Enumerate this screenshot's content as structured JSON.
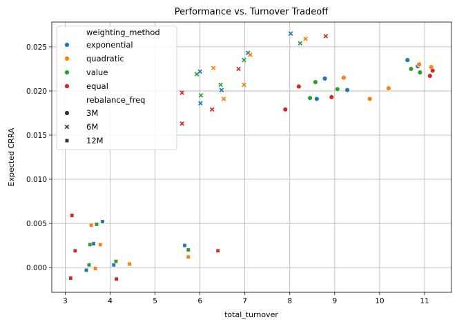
{
  "chart_data": {
    "type": "scatter",
    "title": "Performance vs. Turnover Tradeoff",
    "xlabel": "total_turnover",
    "ylabel": "Expected CRRA",
    "xlim": [
      2.7,
      11.6
    ],
    "ylim": [
      -0.0028,
      0.0278
    ],
    "xticks": [
      3,
      4,
      5,
      6,
      7,
      8,
      9,
      10,
      11
    ],
    "xtick_labels": [
      "3",
      "4",
      "5",
      "6",
      "7",
      "8",
      "9",
      "10",
      "11"
    ],
    "yticks": [
      0,
      0.005,
      0.01,
      0.015,
      0.02,
      0.025
    ],
    "ytick_labels": [
      "0.000",
      "0.005",
      "0.010",
      "0.015",
      "0.020",
      "0.025"
    ],
    "grid": true,
    "legend": {
      "placement": "top-left",
      "hue_title": "weighting_method",
      "hue_entries": [
        {
          "name": "exponential",
          "color": "#1f77b4"
        },
        {
          "name": "quadratic",
          "color": "#ff7f0e"
        },
        {
          "name": "value",
          "color": "#2ca02c"
        },
        {
          "name": "equal",
          "color": "#d62728"
        }
      ],
      "style_title": "rebalance_freq",
      "style_entries": [
        {
          "name": "3M",
          "marker": "circle"
        },
        {
          "name": "6M",
          "marker": "x"
        },
        {
          "name": "12M",
          "marker": "square"
        }
      ]
    },
    "colors": {
      "exponential": "#1f77b4",
      "quadratic": "#ff7f0e",
      "value": "#2ca02c",
      "equal": "#d62728"
    },
    "points": [
      {
        "x": 10.62,
        "y": 0.0235,
        "method": "exponential",
        "freq": "3M"
      },
      {
        "x": 10.85,
        "y": 0.0228,
        "method": "exponential",
        "freq": "3M"
      },
      {
        "x": 8.78,
        "y": 0.0214,
        "method": "exponential",
        "freq": "3M"
      },
      {
        "x": 9.28,
        "y": 0.0201,
        "method": "exponential",
        "freq": "3M"
      },
      {
        "x": 8.6,
        "y": 0.0191,
        "method": "exponential",
        "freq": "3M"
      },
      {
        "x": 10.88,
        "y": 0.023,
        "method": "quadratic",
        "freq": "3M"
      },
      {
        "x": 11.15,
        "y": 0.0227,
        "method": "quadratic",
        "freq": "3M"
      },
      {
        "x": 9.2,
        "y": 0.0215,
        "method": "quadratic",
        "freq": "3M"
      },
      {
        "x": 10.2,
        "y": 0.0203,
        "method": "quadratic",
        "freq": "3M"
      },
      {
        "x": 9.78,
        "y": 0.0191,
        "method": "quadratic",
        "freq": "3M"
      },
      {
        "x": 10.7,
        "y": 0.0225,
        "method": "value",
        "freq": "3M"
      },
      {
        "x": 10.9,
        "y": 0.0221,
        "method": "value",
        "freq": "3M"
      },
      {
        "x": 8.57,
        "y": 0.021,
        "method": "value",
        "freq": "3M"
      },
      {
        "x": 9.06,
        "y": 0.0202,
        "method": "value",
        "freq": "3M"
      },
      {
        "x": 8.45,
        "y": 0.0192,
        "method": "value",
        "freq": "3M"
      },
      {
        "x": 11.18,
        "y": 0.0223,
        "method": "equal",
        "freq": "3M"
      },
      {
        "x": 11.12,
        "y": 0.0217,
        "method": "equal",
        "freq": "3M"
      },
      {
        "x": 8.2,
        "y": 0.0205,
        "method": "equal",
        "freq": "3M"
      },
      {
        "x": 8.93,
        "y": 0.0193,
        "method": "equal",
        "freq": "3M"
      },
      {
        "x": 7.9,
        "y": 0.0179,
        "method": "equal",
        "freq": "3M"
      },
      {
        "x": 8.02,
        "y": 0.0265,
        "method": "exponential",
        "freq": "6M"
      },
      {
        "x": 7.07,
        "y": 0.0243,
        "method": "exponential",
        "freq": "6M"
      },
      {
        "x": 6.0,
        "y": 0.0222,
        "method": "exponential",
        "freq": "6M"
      },
      {
        "x": 6.48,
        "y": 0.0201,
        "method": "exponential",
        "freq": "6M"
      },
      {
        "x": 6.01,
        "y": 0.0186,
        "method": "exponential",
        "freq": "6M"
      },
      {
        "x": 8.35,
        "y": 0.0259,
        "method": "quadratic",
        "freq": "6M"
      },
      {
        "x": 7.12,
        "y": 0.0241,
        "method": "quadratic",
        "freq": "6M"
      },
      {
        "x": 6.3,
        "y": 0.0226,
        "method": "quadratic",
        "freq": "6M"
      },
      {
        "x": 6.98,
        "y": 0.0207,
        "method": "quadratic",
        "freq": "6M"
      },
      {
        "x": 6.53,
        "y": 0.0191,
        "method": "quadratic",
        "freq": "6M"
      },
      {
        "x": 8.23,
        "y": 0.0254,
        "method": "value",
        "freq": "6M"
      },
      {
        "x": 6.98,
        "y": 0.0235,
        "method": "value",
        "freq": "6M"
      },
      {
        "x": 5.93,
        "y": 0.0219,
        "method": "value",
        "freq": "6M"
      },
      {
        "x": 6.46,
        "y": 0.0207,
        "method": "value",
        "freq": "6M"
      },
      {
        "x": 6.02,
        "y": 0.0195,
        "method": "value",
        "freq": "6M"
      },
      {
        "x": 8.8,
        "y": 0.0262,
        "method": "equal",
        "freq": "6M"
      },
      {
        "x": 6.86,
        "y": 0.0225,
        "method": "equal",
        "freq": "6M"
      },
      {
        "x": 5.6,
        "y": 0.0198,
        "method": "equal",
        "freq": "6M"
      },
      {
        "x": 6.27,
        "y": 0.0179,
        "method": "equal",
        "freq": "6M"
      },
      {
        "x": 5.6,
        "y": 0.0163,
        "method": "equal",
        "freq": "6M"
      },
      {
        "x": 3.83,
        "y": 0.0052,
        "method": "exponential",
        "freq": "12M"
      },
      {
        "x": 3.63,
        "y": 0.0027,
        "method": "exponential",
        "freq": "12M"
      },
      {
        "x": 5.66,
        "y": 0.0025,
        "method": "exponential",
        "freq": "12M"
      },
      {
        "x": 4.08,
        "y": 0.0003,
        "method": "exponential",
        "freq": "12M"
      },
      {
        "x": 3.47,
        "y": -0.0003,
        "method": "exponential",
        "freq": "12M"
      },
      {
        "x": 3.58,
        "y": 0.0048,
        "method": "quadratic",
        "freq": "12M"
      },
      {
        "x": 3.78,
        "y": 0.0026,
        "method": "quadratic",
        "freq": "12M"
      },
      {
        "x": 5.74,
        "y": 0.0012,
        "method": "quadratic",
        "freq": "12M"
      },
      {
        "x": 4.43,
        "y": 0.0004,
        "method": "quadratic",
        "freq": "12M"
      },
      {
        "x": 3.67,
        "y": -0.0001,
        "method": "quadratic",
        "freq": "12M"
      },
      {
        "x": 3.7,
        "y": 0.0049,
        "method": "value",
        "freq": "12M"
      },
      {
        "x": 3.55,
        "y": 0.0026,
        "method": "value",
        "freq": "12M"
      },
      {
        "x": 5.74,
        "y": 0.002,
        "method": "value",
        "freq": "12M"
      },
      {
        "x": 4.13,
        "y": 0.0007,
        "method": "value",
        "freq": "12M"
      },
      {
        "x": 3.53,
        "y": 0.0003,
        "method": "value",
        "freq": "12M"
      },
      {
        "x": 3.15,
        "y": 0.0059,
        "method": "equal",
        "freq": "12M"
      },
      {
        "x": 3.22,
        "y": 0.0019,
        "method": "equal",
        "freq": "12M"
      },
      {
        "x": 6.4,
        "y": 0.0019,
        "method": "equal",
        "freq": "12M"
      },
      {
        "x": 4.14,
        "y": -0.0013,
        "method": "equal",
        "freq": "12M"
      },
      {
        "x": 3.12,
        "y": -0.0012,
        "method": "equal",
        "freq": "12M"
      }
    ]
  }
}
